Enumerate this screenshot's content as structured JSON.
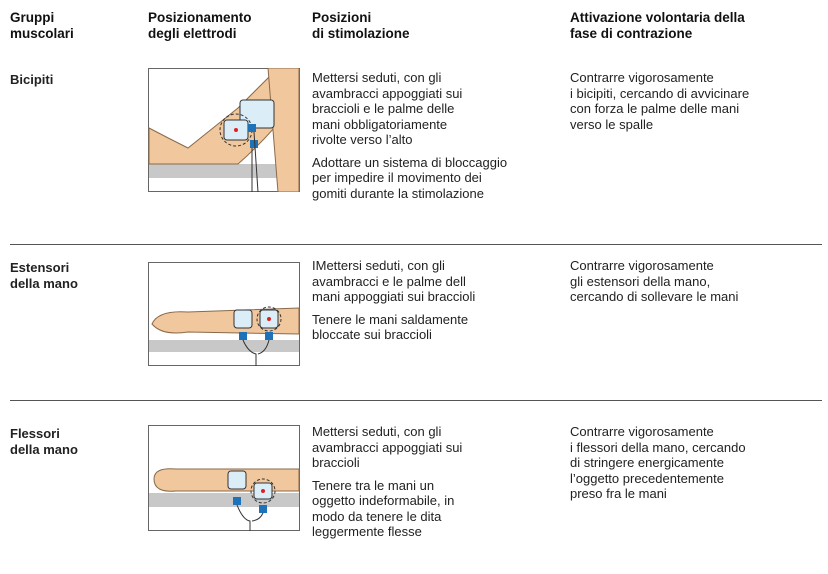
{
  "table": {
    "header": [
      [
        "Gruppi",
        "muscolari"
      ],
      [
        "Posizionamento",
        "degli elettrodi"
      ],
      [
        "Posizioni",
        "di stimolazione"
      ],
      [
        "Attivazione volontaria della",
        "fase di contrazione"
      ]
    ],
    "rows": [
      {
        "group": [
          "Bicipiti"
        ],
        "positions": [
          [
            "Mettersi seduti, con gli",
            "avambracci appoggiati sui",
            "braccioli e le palme delle",
            "mani obbligatoriamente",
            "rivolte verso l’alto"
          ],
          [
            "Adottare un sistema di bloccaggio",
            "per impedire il movimento dei",
            "gomiti durante la stimolazione"
          ]
        ],
        "activation": [
          "Contrarre vigorosamente",
          "i bicipiti, cercando di avvicinare",
          "con forza le palme delle mani",
          "verso le spalle"
        ]
      },
      {
        "group": [
          "Estensori",
          "della mano"
        ],
        "positions": [
          [
            "IMettersi seduti, con gli",
            "avambracci e le palme dell",
            "mani appoggiati sui braccioli"
          ],
          [
            "Tenere le mani saldamente",
            "bloccate sui braccioli"
          ]
        ],
        "activation": [
          "Contrarre vigorosamente",
          "gli estensori della mano,",
          "cercando di sollevare le mani"
        ]
      },
      {
        "group": [
          "Flessori",
          "della mano"
        ],
        "positions": [
          [
            "Mettersi seduti, con gli",
            "avambracci appoggiati sui",
            "braccioli"
          ],
          [
            "Tenere tra le mani un",
            "oggetto indeformabile, in",
            "modo da tenere le dita",
            "leggermente flesse"
          ]
        ],
        "activation": [
          "Contrarre vigorosamente",
          "i flessori della mano, cercando",
          "di stringere energicamente",
          "l’oggetto precedentemente",
          "preso fra le mani"
        ]
      }
    ]
  }
}
